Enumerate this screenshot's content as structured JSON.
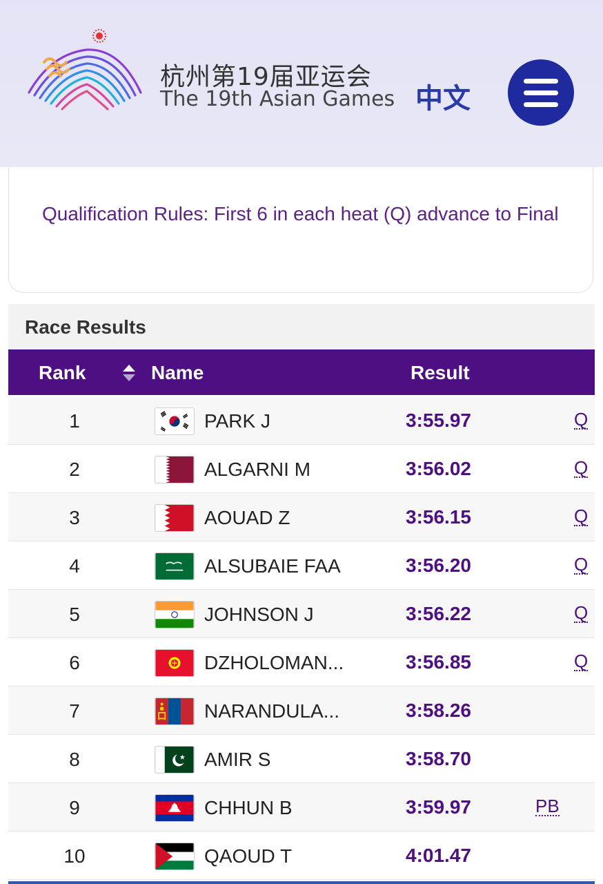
{
  "header": {
    "logo_cn": "杭州第19届亚运会",
    "logo_en": "The 19th Asian Games",
    "lang_label": "中文",
    "menu_icon": "hamburger-menu-icon"
  },
  "rules": {
    "text": "Qualification Rules: First 6 in each heat (Q) advance to Final"
  },
  "results": {
    "title": "Race Results",
    "columns": {
      "rank": "Rank",
      "name": "Name",
      "result": "Result"
    },
    "rows": [
      {
        "rank": "1",
        "flag": "korea-flag-icon",
        "name": "PARK J",
        "result": "3:55.97",
        "mark": "Q"
      },
      {
        "rank": "2",
        "flag": "qatar-flag-icon",
        "name": "ALGARNI M",
        "result": "3:56.02",
        "mark": "Q"
      },
      {
        "rank": "3",
        "flag": "bahrain-flag-icon",
        "name": "AOUAD Z",
        "result": "3:56.15",
        "mark": "Q"
      },
      {
        "rank": "4",
        "flag": "saudi-arabia-flag-icon",
        "name": "ALSUBAIE FAA",
        "result": "3:56.20",
        "mark": "Q"
      },
      {
        "rank": "5",
        "flag": "india-flag-icon",
        "name": "JOHNSON J",
        "result": "3:56.22",
        "mark": "Q"
      },
      {
        "rank": "6",
        "flag": "kyrgyzstan-flag-icon",
        "name": "DZHOLOMAN...",
        "result": "3:56.85",
        "mark": "Q"
      },
      {
        "rank": "7",
        "flag": "mongolia-flag-icon",
        "name": "NARANDULA...",
        "result": "3:58.26",
        "mark": ""
      },
      {
        "rank": "8",
        "flag": "pakistan-flag-icon",
        "name": "AMIR S",
        "result": "3:58.70",
        "mark": ""
      },
      {
        "rank": "9",
        "flag": "cambodia-flag-icon",
        "name": "CHHUN B",
        "result": "3:59.97",
        "mark": "PB"
      },
      {
        "rank": "10",
        "flag": "palestine-flag-icon",
        "name": "QAOUD T",
        "result": "4:01.47",
        "mark": ""
      }
    ]
  },
  "colors": {
    "header_bg": "#e6e6f6",
    "accent_purple": "#4d0f82",
    "menu_blue": "#1f2a9e",
    "rules_text": "#5a2385"
  }
}
